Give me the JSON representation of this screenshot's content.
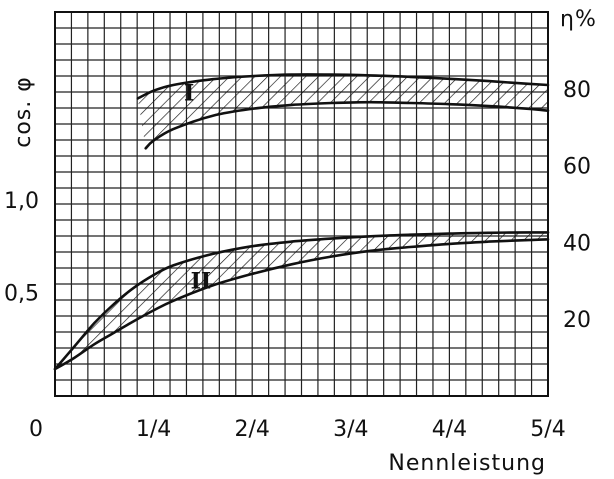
{
  "chart_data": {
    "type": "line",
    "xlabel": "Nennleistung",
    "ylabel_left": "cos. φ",
    "ylabel_right": "η%",
    "x_ticks": [
      {
        "value": 0,
        "label": "0"
      },
      {
        "value": 0.25,
        "label": "1/4"
      },
      {
        "value": 0.5,
        "label": "2/4"
      },
      {
        "value": 0.75,
        "label": "3/4"
      },
      {
        "value": 1.0,
        "label": "4/4"
      },
      {
        "value": 1.25,
        "label": "5/4"
      }
    ],
    "left_ticks": [
      {
        "value": 0.5,
        "label": "0,5"
      },
      {
        "value": 1.0,
        "label": "1,0"
      }
    ],
    "right_ticks": [
      {
        "value": 20,
        "label": "20"
      },
      {
        "value": 40,
        "label": "40"
      },
      {
        "value": 60,
        "label": "60"
      },
      {
        "value": 80,
        "label": "80"
      }
    ],
    "right_axis_range": [
      0,
      100
    ],
    "grid": true,
    "bands": [
      {
        "label": "I",
        "label_at": {
          "x": 0.34,
          "eta": 77
        },
        "upper": {
          "x": [
            0.21,
            0.25,
            0.3,
            0.4,
            0.5,
            0.6,
            0.7,
            0.8,
            0.9,
            1.0,
            1.1,
            1.2,
            1.25
          ],
          "eta": [
            77.5,
            79.5,
            81,
            82.5,
            83.3,
            83.7,
            83.7,
            83.5,
            83.1,
            82.6,
            82,
            81.3,
            81
          ]
        },
        "lower": {
          "x": [
            0.23,
            0.25,
            0.3,
            0.4,
            0.5,
            0.6,
            0.7,
            0.8,
            0.9,
            1.0,
            1.1,
            1.2,
            1.25
          ],
          "eta": [
            64.5,
            66.5,
            69.5,
            73,
            74.8,
            75.8,
            76.3,
            76.5,
            76.3,
            76,
            75.5,
            74.8,
            74.3
          ]
        }
      },
      {
        "label": "II",
        "label_at": {
          "x": 0.37,
          "eta": 28
        },
        "upper": {
          "x": [
            0,
            0.05,
            0.1,
            0.15,
            0.2,
            0.25,
            0.3,
            0.4,
            0.5,
            0.6,
            0.7,
            0.8,
            0.9,
            1.0,
            1.1,
            1.2,
            1.25
          ],
          "eta": [
            7,
            13,
            19,
            24,
            28.2,
            31.5,
            34,
            37,
            39,
            40.2,
            41,
            41.6,
            42,
            42.3,
            42.5,
            42.6,
            42.6
          ]
        },
        "lower": {
          "x": [
            0,
            0.05,
            0.1,
            0.15,
            0.2,
            0.25,
            0.3,
            0.4,
            0.5,
            0.6,
            0.7,
            0.8,
            0.9,
            1.0,
            1.1,
            1.2,
            1.25
          ],
          "eta": [
            7,
            10,
            13.5,
            16.5,
            19.5,
            22.3,
            24.8,
            28.8,
            31.8,
            34.3,
            36.3,
            37.8,
            38.8,
            39.6,
            40.2,
            40.6,
            40.8
          ]
        }
      }
    ]
  }
}
